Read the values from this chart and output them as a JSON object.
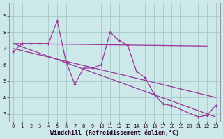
{
  "bg_color": "#cce8e8",
  "line_color": "#993399",
  "grid_color": "#aacccc",
  "xlabel": "Windchill (Refroidissement éolien,°C)",
  "x_ticks": [
    0,
    1,
    2,
    3,
    4,
    5,
    6,
    7,
    8,
    9,
    10,
    11,
    12,
    13,
    14,
    15,
    16,
    17,
    18,
    19,
    20,
    21,
    22,
    23
  ],
  "y_ticks": [
    3,
    4,
    5,
    6,
    7,
    8,
    9
  ],
  "ylim": [
    2.5,
    9.8
  ],
  "xlim": [
    -0.5,
    23.5
  ],
  "main_x": [
    0,
    1,
    2,
    3,
    4,
    5,
    6,
    7,
    8,
    9,
    10,
    11,
    12,
    13,
    14,
    15,
    16,
    17,
    18,
    21,
    22,
    23
  ],
  "main_y": [
    6.8,
    7.3,
    7.3,
    7.3,
    7.3,
    8.7,
    6.2,
    4.8,
    5.8,
    5.8,
    6.0,
    8.0,
    7.5,
    7.2,
    5.6,
    5.2,
    4.2,
    3.6,
    3.5,
    2.8,
    2.9,
    3.5
  ],
  "trend1_x": [
    0,
    23
  ],
  "trend1_y": [
    7.3,
    2.8
  ],
  "trend2_x": [
    0,
    23
  ],
  "trend2_y": [
    7.0,
    4.0
  ],
  "trend3_x": [
    0,
    22
  ],
  "trend3_y": [
    7.3,
    7.15
  ]
}
